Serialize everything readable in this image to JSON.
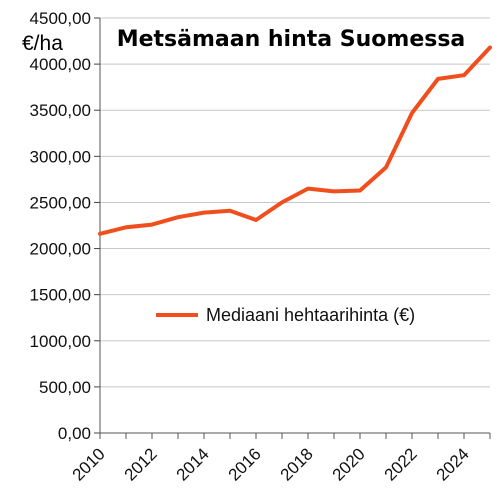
{
  "chart_data": {
    "type": "line",
    "title": "Metsämaan hinta Suomessa",
    "ylabel": "€/ha",
    "xlabel": "",
    "ylim": [
      0,
      4500
    ],
    "y_ticks": [
      "0,00",
      "500,00",
      "1000,00",
      "1500,00",
      "2000,00",
      "2500,00",
      "3000,00",
      "3500,00",
      "4000,00",
      "4500,00"
    ],
    "x_ticks": [
      "2010",
      "2012",
      "2014",
      "2016",
      "2018",
      "2020",
      "2022",
      "2024"
    ],
    "grid": "horizontal",
    "legend_position": "center-right",
    "color": "#f04e1c",
    "series": [
      {
        "name": "Mediaani hehtaarihinta (€)",
        "x": [
          2010,
          2011,
          2012,
          2013,
          2014,
          2015,
          2016,
          2017,
          2018,
          2019,
          2020,
          2021,
          2022,
          2023,
          2024,
          2025
        ],
        "values": [
          2160,
          2230,
          2260,
          2340,
          2390,
          2410,
          2310,
          2500,
          2650,
          2620,
          2630,
          2880,
          3470,
          3840,
          3880,
          4180
        ]
      }
    ]
  }
}
